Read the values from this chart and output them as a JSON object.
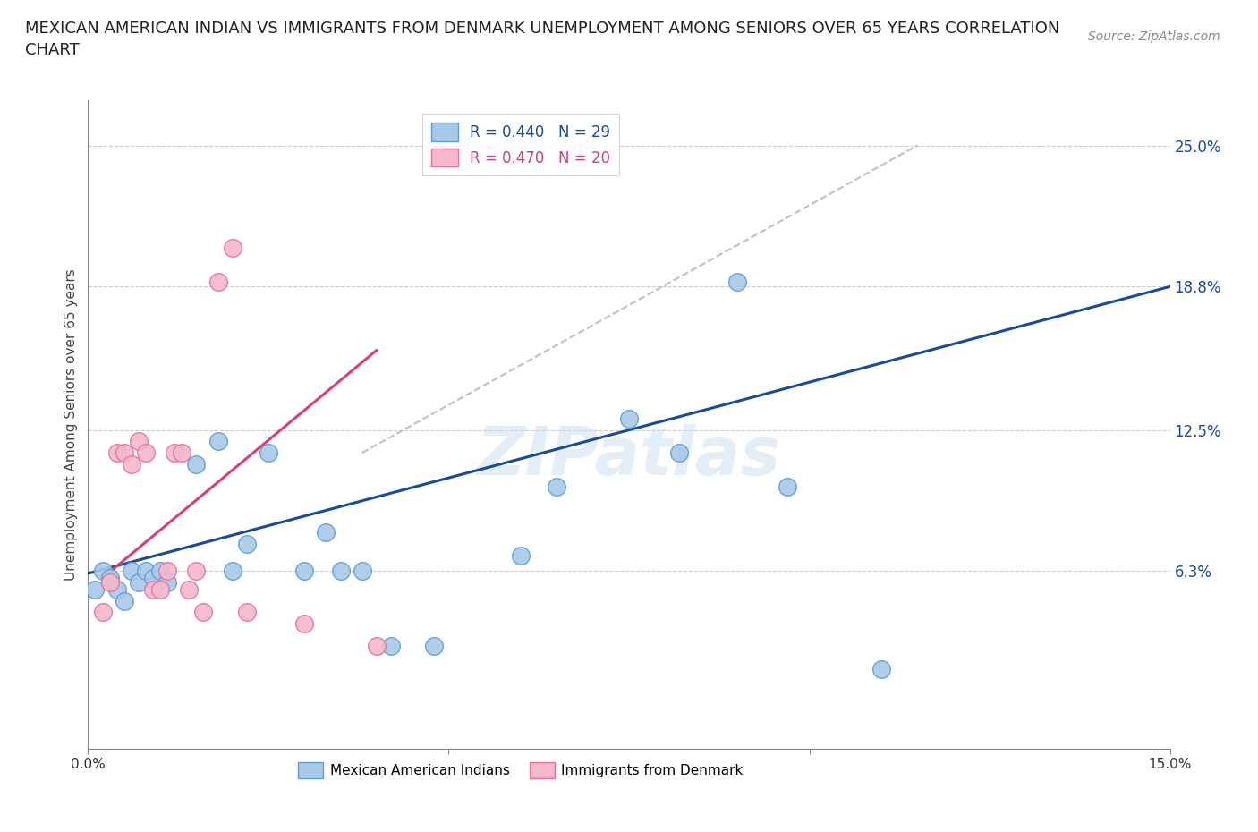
{
  "title": "MEXICAN AMERICAN INDIAN VS IMMIGRANTS FROM DENMARK UNEMPLOYMENT AMONG SENIORS OVER 65 YEARS CORRELATION\nCHART",
  "source_text": "Source: ZipAtlas.com",
  "ylabel": "Unemployment Among Seniors over 65 years",
  "xlim": [
    0.0,
    0.15
  ],
  "ylim": [
    -0.015,
    0.27
  ],
  "ytick_labels_right": [
    "6.3%",
    "12.5%",
    "18.8%",
    "25.0%"
  ],
  "ytick_vals_right": [
    0.063,
    0.125,
    0.188,
    0.25
  ],
  "blue_R": 0.44,
  "blue_N": 29,
  "pink_R": 0.47,
  "pink_N": 20,
  "blue_label": "Mexican American Indians",
  "pink_label": "Immigrants from Denmark",
  "blue_color": "#a8c8e8",
  "blue_edge": "#5a9fd4",
  "pink_color": "#f5b8cc",
  "pink_edge": "#e8709a",
  "blue_line_color": "#1a4a9a",
  "pink_line_color": "#d84070",
  "ref_line_color": "#c0c0c0",
  "watermark": "ZIPatlas",
  "blue_x": [
    0.001,
    0.002,
    0.003,
    0.004,
    0.005,
    0.006,
    0.007,
    0.008,
    0.009,
    0.01,
    0.011,
    0.015,
    0.018,
    0.02,
    0.022,
    0.025,
    0.03,
    0.033,
    0.035,
    0.038,
    0.042,
    0.048,
    0.06,
    0.065,
    0.075,
    0.082,
    0.09,
    0.097,
    0.11
  ],
  "blue_y": [
    0.055,
    0.063,
    0.06,
    0.055,
    0.05,
    0.063,
    0.058,
    0.063,
    0.06,
    0.063,
    0.058,
    0.11,
    0.12,
    0.063,
    0.075,
    0.115,
    0.063,
    0.08,
    0.063,
    0.063,
    0.03,
    0.03,
    0.07,
    0.1,
    0.13,
    0.115,
    0.19,
    0.1,
    0.02
  ],
  "pink_x": [
    0.002,
    0.003,
    0.004,
    0.005,
    0.006,
    0.007,
    0.008,
    0.009,
    0.01,
    0.011,
    0.012,
    0.013,
    0.014,
    0.015,
    0.016,
    0.018,
    0.02,
    0.022,
    0.03,
    0.04
  ],
  "pink_y": [
    0.045,
    0.058,
    0.115,
    0.115,
    0.11,
    0.12,
    0.115,
    0.055,
    0.055,
    0.063,
    0.115,
    0.115,
    0.055,
    0.063,
    0.045,
    0.19,
    0.205,
    0.045,
    0.04,
    0.03
  ],
  "blue_line_x": [
    0.0,
    0.15
  ],
  "blue_line_y": [
    0.062,
    0.188
  ],
  "pink_line_x": [
    0.002,
    0.04
  ],
  "pink_line_y": [
    0.06,
    0.16
  ],
  "ref_line_x": [
    0.038,
    0.115
  ],
  "ref_line_y": [
    0.115,
    0.25
  ]
}
